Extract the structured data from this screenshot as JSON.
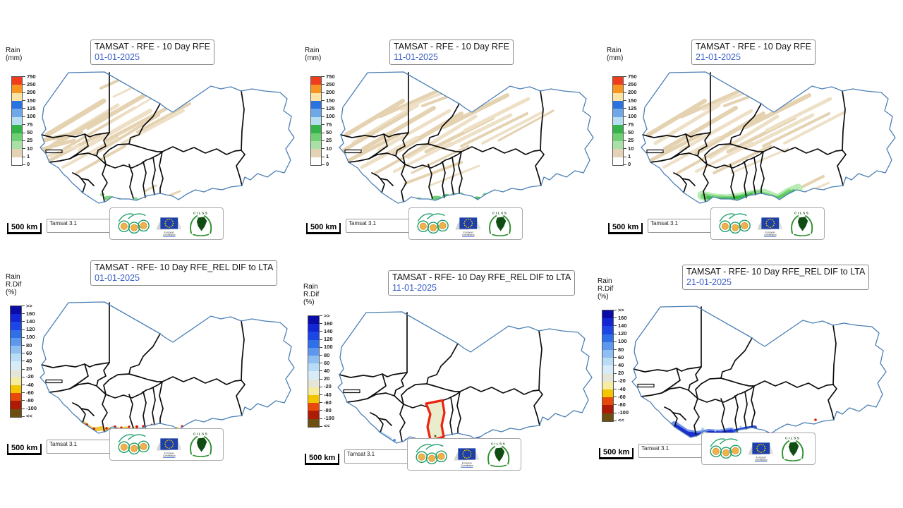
{
  "page": {
    "background": "#ffffff",
    "description": "TAMSAT dekadal rainfall monitoring maps for West Africa, January 2025"
  },
  "panels": [
    {
      "id": "top-left",
      "title": "TAMSAT - RFE - 10 Day RFE",
      "date": "01-01-2025",
      "legend": "rain_mm"
    },
    {
      "id": "top-middle",
      "title": "TAMSAT - RFE - 10 Day RFE",
      "date": "11-01-2025",
      "legend": "rain_mm"
    },
    {
      "id": "top-right",
      "title": "TAMSAT - RFE - 10 Day RFE",
      "date": "21-01-2025",
      "legend": "rain_mm"
    },
    {
      "id": "bottom-left",
      "title": "TAMSAT - RFE- 10 Day RFE_REL DIF to LTA",
      "date": "01-01-2025",
      "legend": "rain_dif"
    },
    {
      "id": "bottom-middle",
      "title": "TAMSAT - RFE- 10 Day RFE_REL DIF to LTA",
      "date": "11-01-2025",
      "legend": "rain_dif"
    },
    {
      "id": "bottom-right",
      "title": "TAMSAT - RFE- 10 Day RFE_REL DIF to LTA",
      "date": "21-01-2025",
      "legend": "rain_dif"
    }
  ],
  "legends": {
    "rain_mm": {
      "title_lines": [
        "Rain",
        "(mm)"
      ],
      "labels": [
        "750",
        "250",
        "200",
        "150",
        "125",
        "100",
        "75",
        "50",
        "25",
        "10",
        "1",
        "0"
      ],
      "colors": [
        "#f03b1d",
        "#f79520",
        "#fbe3a6",
        "#2a72e0",
        "#6fa8e8",
        "#b5dff0",
        "#33b34a",
        "#6fcf73",
        "#a8e0a5",
        "#e3d2b4",
        "#ffffff"
      ]
    },
    "rain_dif": {
      "title_lines": [
        "Rain",
        "R.Dif",
        "(%)"
      ],
      "labels": [
        ">>",
        "160",
        "140",
        "120",
        "100",
        "80",
        "60",
        "40",
        "20",
        "-20",
        "-40",
        "-60",
        "-80",
        "-100",
        "<<"
      ],
      "colors": [
        "#0a0ca8",
        "#1226d6",
        "#1d46e6",
        "#2f6fe8",
        "#5e97ee",
        "#8fbff2",
        "#b8dcf6",
        "#d8ecf8",
        "#e6e6d8",
        "#f5eca0",
        "#f5c400",
        "#e8490b",
        "#ad1a06",
        "#6e4f12"
      ]
    }
  },
  "scale_bar": {
    "label": "500 km"
  },
  "source_box": {
    "label": "Tamsat 3.1"
  },
  "logos": {
    "agrhymet": "AGRHYMET",
    "eu_caption_lines": [
      "European",
      "Commission"
    ],
    "cilss": "CILSS"
  },
  "colors": {
    "date_text": "#3a5fc8",
    "coastline": "#4b7fb5",
    "country_border": "#0d0d0d",
    "ghana_highlight": "#ee2211",
    "ghana_fill": "#e9edcc",
    "rain_trace_tan": "#e4d2b1",
    "rain_green": "#5ec95f"
  },
  "chart_data": {
    "type": "heatmap",
    "title": "TAMSAT RFE 10-day rainfall maps, West Africa, January 2025 dekads",
    "layout": "2 rows x 3 columns of choropleth maps",
    "rows": [
      {
        "metric": "10 Day RFE (mm)",
        "dates": [
          "01-01-2025",
          "11-01-2025",
          "21-01-2025"
        ],
        "scale_unit": "mm",
        "scale_labels": [
          750,
          250,
          200,
          150,
          125,
          100,
          75,
          50,
          25,
          10,
          1,
          0
        ],
        "observations": [
          "Light rain traces (1-10 mm, tan) across Mauritania, Senegal and western Mali; small 10-50 mm green patches on the Liberia / Cote d'Ivoire coast",
          "Tan 1-10 mm traces across most of the Sahel band (Mali, Niger); green 10-50 mm patches along the Gulf of Guinea coast from Ghana to Nigeria",
          "Tan traces across the north; widest green 10-75 mm band along the entire southern coast from Liberia to Nigeria"
        ]
      },
      {
        "metric": "10 Day RFE_REL DIF to LTA (%)",
        "dates": [
          "01-01-2025",
          "11-01-2025",
          "21-01-2025"
        ],
        "scale_unit": "%",
        "scale_labels": [
          ">>",
          160,
          140,
          120,
          100,
          80,
          60,
          40,
          20,
          -20,
          -40,
          -60,
          -80,
          -100,
          "<<"
        ],
        "observations": [
          "Negative anomalies (yellow to red, -20 to -100%) along the Liberia, Cote d'Ivoire and Ghana coastline",
          "Ghana outlined in thick red (area of interest); strong positive anomalies (dark blue) around the Niger delta coast; small wet patch on Liberia coast",
          "Strong positive anomalies (blue, >100%) along the whole Gulf of Guinea coast; isolated dry (red) spots in southern Nigeria"
        ]
      }
    ],
    "annotations": [
      "Each map: 500 km scale bar, Tamsat 3.1 source box, AGRHYMET / European Commission / CILSS logos",
      "Country borders: CILSS member countries in black, outer region boundary in steel blue"
    ]
  }
}
